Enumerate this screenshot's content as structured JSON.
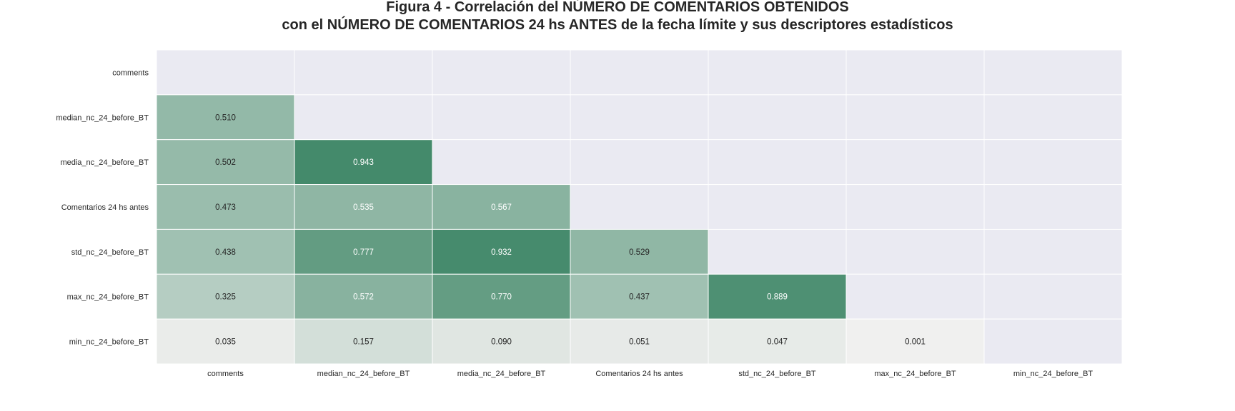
{
  "chart_data": {
    "type": "heatmap",
    "title_line1": "Figura 4 - Correlación del NÚMERO DE COMENTARIOS OBTENIDOS",
    "title_line2": "con el NÚMERO DE COMENTARIOS 24 hs ANTES de la fecha límite y sus descriptores estadísticos",
    "row_labels": [
      "comments",
      "median_nc_24_before_BT",
      "media_nc_24_before_BT",
      "Comentarios 24 hs antes",
      "std_nc_24_before_BT",
      "max_nc_24_before_BT",
      "min_nc_24_before_BT"
    ],
    "col_labels": [
      "comments",
      "median_nc_24_before_BT",
      "media_nc_24_before_BT",
      "Comentarios 24 hs antes",
      "std_nc_24_before_BT",
      "max_nc_24_before_BT",
      "min_nc_24_before_BT"
    ],
    "values": [
      [
        null,
        null,
        null,
        null,
        null,
        null,
        null
      ],
      [
        0.51,
        null,
        null,
        null,
        null,
        null,
        null
      ],
      [
        0.502,
        0.943,
        null,
        null,
        null,
        null,
        null
      ],
      [
        0.473,
        0.535,
        0.567,
        null,
        null,
        null,
        null
      ],
      [
        0.438,
        0.777,
        0.932,
        0.529,
        null,
        null,
        null
      ],
      [
        0.325,
        0.572,
        0.77,
        0.437,
        0.889,
        null,
        null
      ],
      [
        0.035,
        0.157,
        0.09,
        0.051,
        0.047,
        0.001,
        null
      ]
    ],
    "masked": "upper triangle including diagonal",
    "value_format": "0.000",
    "colormap": {
      "low": "#f0f0ef",
      "high": "#3a8463"
    },
    "mask_color": "#eaeaf2",
    "grid_color": "#ffffff",
    "colorbar": false
  }
}
